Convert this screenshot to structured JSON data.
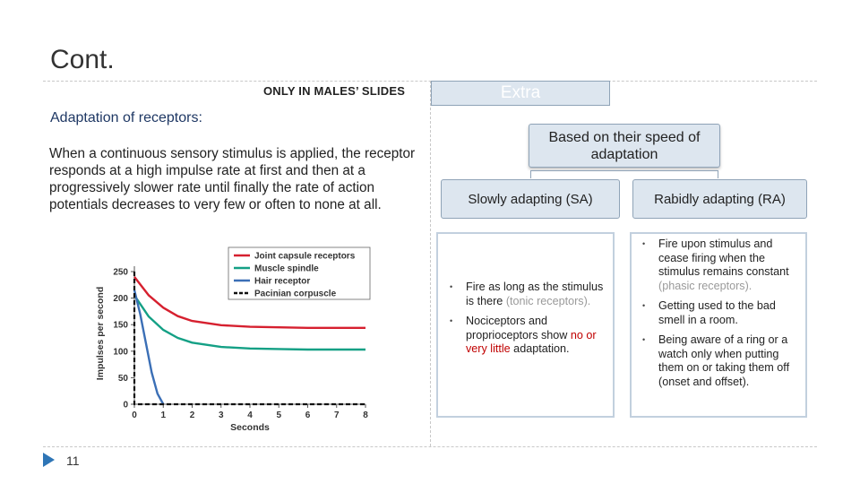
{
  "slide": {
    "title": "Cont.",
    "banner_left": "ONLY IN MALES’ SLIDES",
    "banner_right": "Extra",
    "section_heading": "Adaptation of receptors:",
    "description": "When a continuous sensory stimulus is applied, the receptor responds at a high impulse rate at first and then at a progressively slower rate until finally the rate of action potentials decreases to very few or often to none at all.",
    "page_number": "11",
    "nav_icon": "play-triangle-icon",
    "colors": {
      "box_fill": "#dde6ef",
      "box_border": "#8fa3b7",
      "heading": "#1f3864",
      "highlight_red": "#c00000",
      "nav_icon": "#2e75b6"
    }
  },
  "diagram": {
    "root": "Based on their speed of adaptation",
    "sa_label": "Slowly adapting (SA)",
    "ra_label": "Rabidly adapting (RA)",
    "sa_items": [
      {
        "parts": [
          {
            "text": "Fire as long as the stimulus is there ",
            "style": "normal"
          },
          {
            "text": "(tonic receptors).",
            "style": "grey"
          }
        ]
      },
      {
        "parts": [
          {
            "text": "Nociceptors and proprioceptors show ",
            "style": "normal"
          },
          {
            "text": "no or very little",
            "style": "red"
          },
          {
            "text": " adaptation.",
            "style": "normal"
          }
        ]
      }
    ],
    "ra_items": [
      {
        "parts": [
          {
            "text": "Fire upon stimulus and  cease firing when the stimulus remains constant ",
            "style": "normal"
          },
          {
            "text": "(phasic receptors).",
            "style": "grey"
          }
        ]
      },
      {
        "parts": [
          {
            "text": "Getting used to the bad smell in a room.",
            "style": "normal"
          }
        ]
      },
      {
        "parts": [
          {
            "text": "Being aware of a ring or a watch only when putting  them on or taking them off (onset and offset).",
            "style": "normal"
          }
        ]
      }
    ]
  },
  "chart_data": {
    "type": "line",
    "title": "",
    "xlabel": "Seconds",
    "ylabel": "Impulses per second",
    "xlim": [
      0,
      8
    ],
    "ylim": [
      0,
      250
    ],
    "x_ticks": [
      "0",
      "1",
      "2",
      "3",
      "4",
      "5",
      "6",
      "7",
      "8"
    ],
    "y_ticks": [
      "0",
      "50",
      "100",
      "150",
      "200",
      "250"
    ],
    "grid": false,
    "legend_position": "top-right",
    "series": [
      {
        "name": "Joint capsule receptors",
        "color": "#d6202f",
        "style": "solid",
        "x": [
          0,
          0.5,
          1,
          1.5,
          2,
          3,
          4,
          5,
          6,
          7,
          8
        ],
        "y": [
          240,
          205,
          182,
          166,
          157,
          149,
          146,
          145,
          144,
          144,
          144
        ]
      },
      {
        "name": "Muscle spindle",
        "color": "#14a085",
        "style": "solid",
        "x": [
          0,
          0.5,
          1,
          1.5,
          2,
          3,
          4,
          5,
          6,
          7,
          8
        ],
        "y": [
          205,
          165,
          140,
          125,
          116,
          108,
          105,
          104,
          103,
          103,
          103
        ]
      },
      {
        "name": "Hair receptor",
        "color": "#3b6fb6",
        "style": "solid",
        "x": [
          0,
          0.2,
          0.4,
          0.6,
          0.8,
          1.0
        ],
        "y": [
          215,
          170,
          115,
          60,
          20,
          0
        ]
      },
      {
        "name": "Pacinian corpuscle",
        "color": "#111111",
        "style": "dashed",
        "x": [
          0,
          0,
          0.1,
          0.1,
          8
        ],
        "y": [
          250,
          0,
          0,
          0,
          0
        ]
      }
    ]
  }
}
